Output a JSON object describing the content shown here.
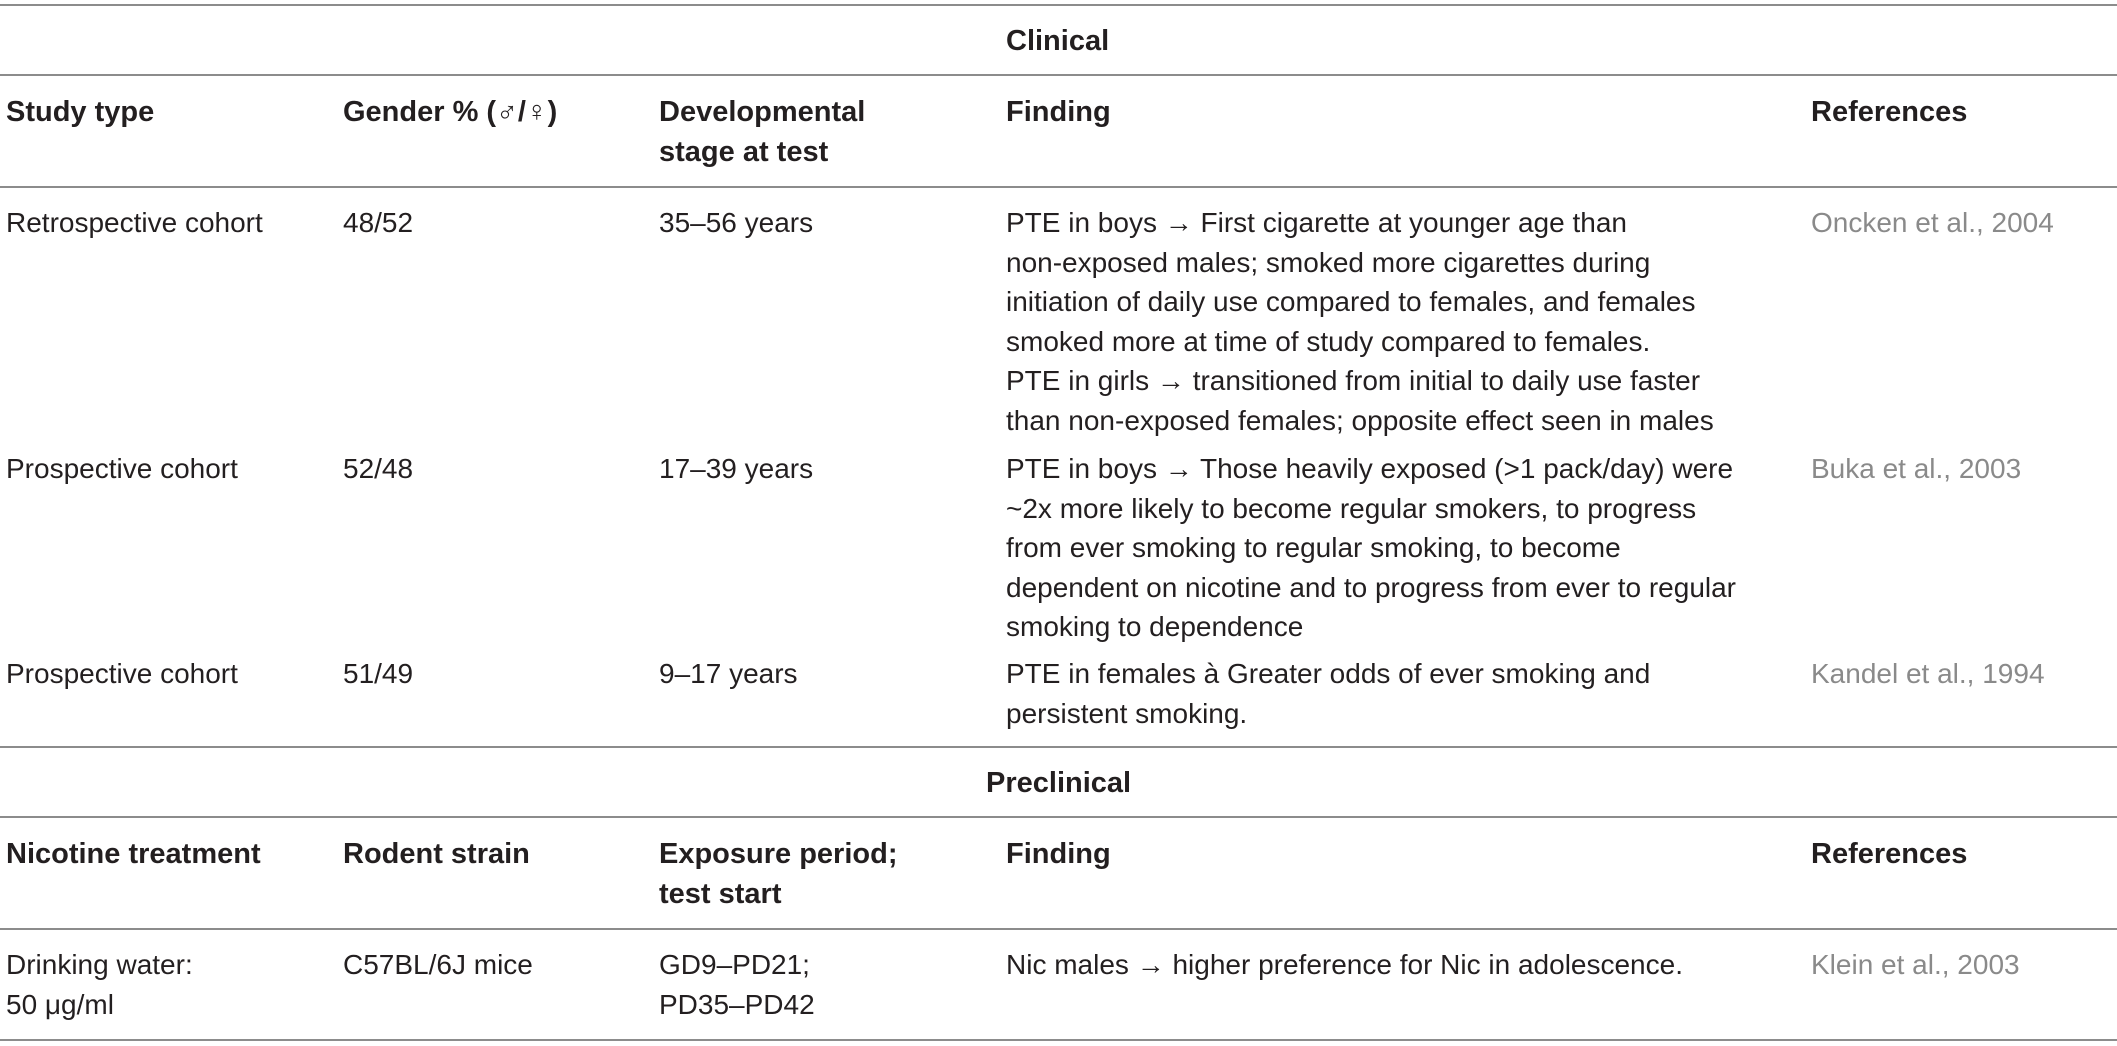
{
  "clinical": {
    "title": "Clinical",
    "headers": {
      "study_type": "Study type",
      "gender": "Gender % (♂/♀)",
      "stage_line1": "Developmental",
      "stage_line2": "stage at test",
      "finding": "Finding",
      "references": "References"
    },
    "rows": [
      {
        "study_type": "Retrospective cohort",
        "gender": "48/52",
        "stage": "35–56 years",
        "finding_lines": [
          "PTE in boys → First cigarette at younger age than",
          "non-exposed males; smoked more cigarettes during",
          "initiation of daily use compared to females, and females",
          "smoked more at time of study compared to females.",
          "PTE in girls → transitioned from initial to daily use faster",
          "than non-exposed females; opposite effect seen in males"
        ],
        "reference": "Oncken et al., 2004"
      },
      {
        "study_type": "Prospective cohort",
        "gender": "52/48",
        "stage": "17–39 years",
        "finding_lines": [
          "PTE in boys → Those heavily exposed (>1 pack/day) were",
          "~2x more likely to become regular smokers, to progress",
          "from ever smoking to regular smoking, to become",
          "dependent on nicotine and to progress from ever to regular",
          "smoking to dependence"
        ],
        "reference": "Buka et al., 2003"
      },
      {
        "study_type": "Prospective cohort",
        "gender": "51/49",
        "stage": "9–17 years",
        "finding_lines": [
          "PTE in females à Greater odds of ever smoking and",
          "persistent smoking."
        ],
        "reference": "Kandel et al., 1994"
      }
    ]
  },
  "preclinical": {
    "title": "Preclinical",
    "headers": {
      "treatment": "Nicotine treatment",
      "strain": "Rodent strain",
      "period_line1": "Exposure period;",
      "period_line2": "test start",
      "finding": "Finding",
      "references": "References"
    },
    "rows": [
      {
        "treatment_lines": [
          "Drinking water:",
          "50 μg/ml"
        ],
        "strain": "C57BL/6J mice",
        "period_lines": [
          "GD9–PD21;",
          "PD35–PD42"
        ],
        "finding": "Nic males → higher preference for Nic in adolescence.",
        "reference": "Klein et al., 2003"
      }
    ]
  }
}
